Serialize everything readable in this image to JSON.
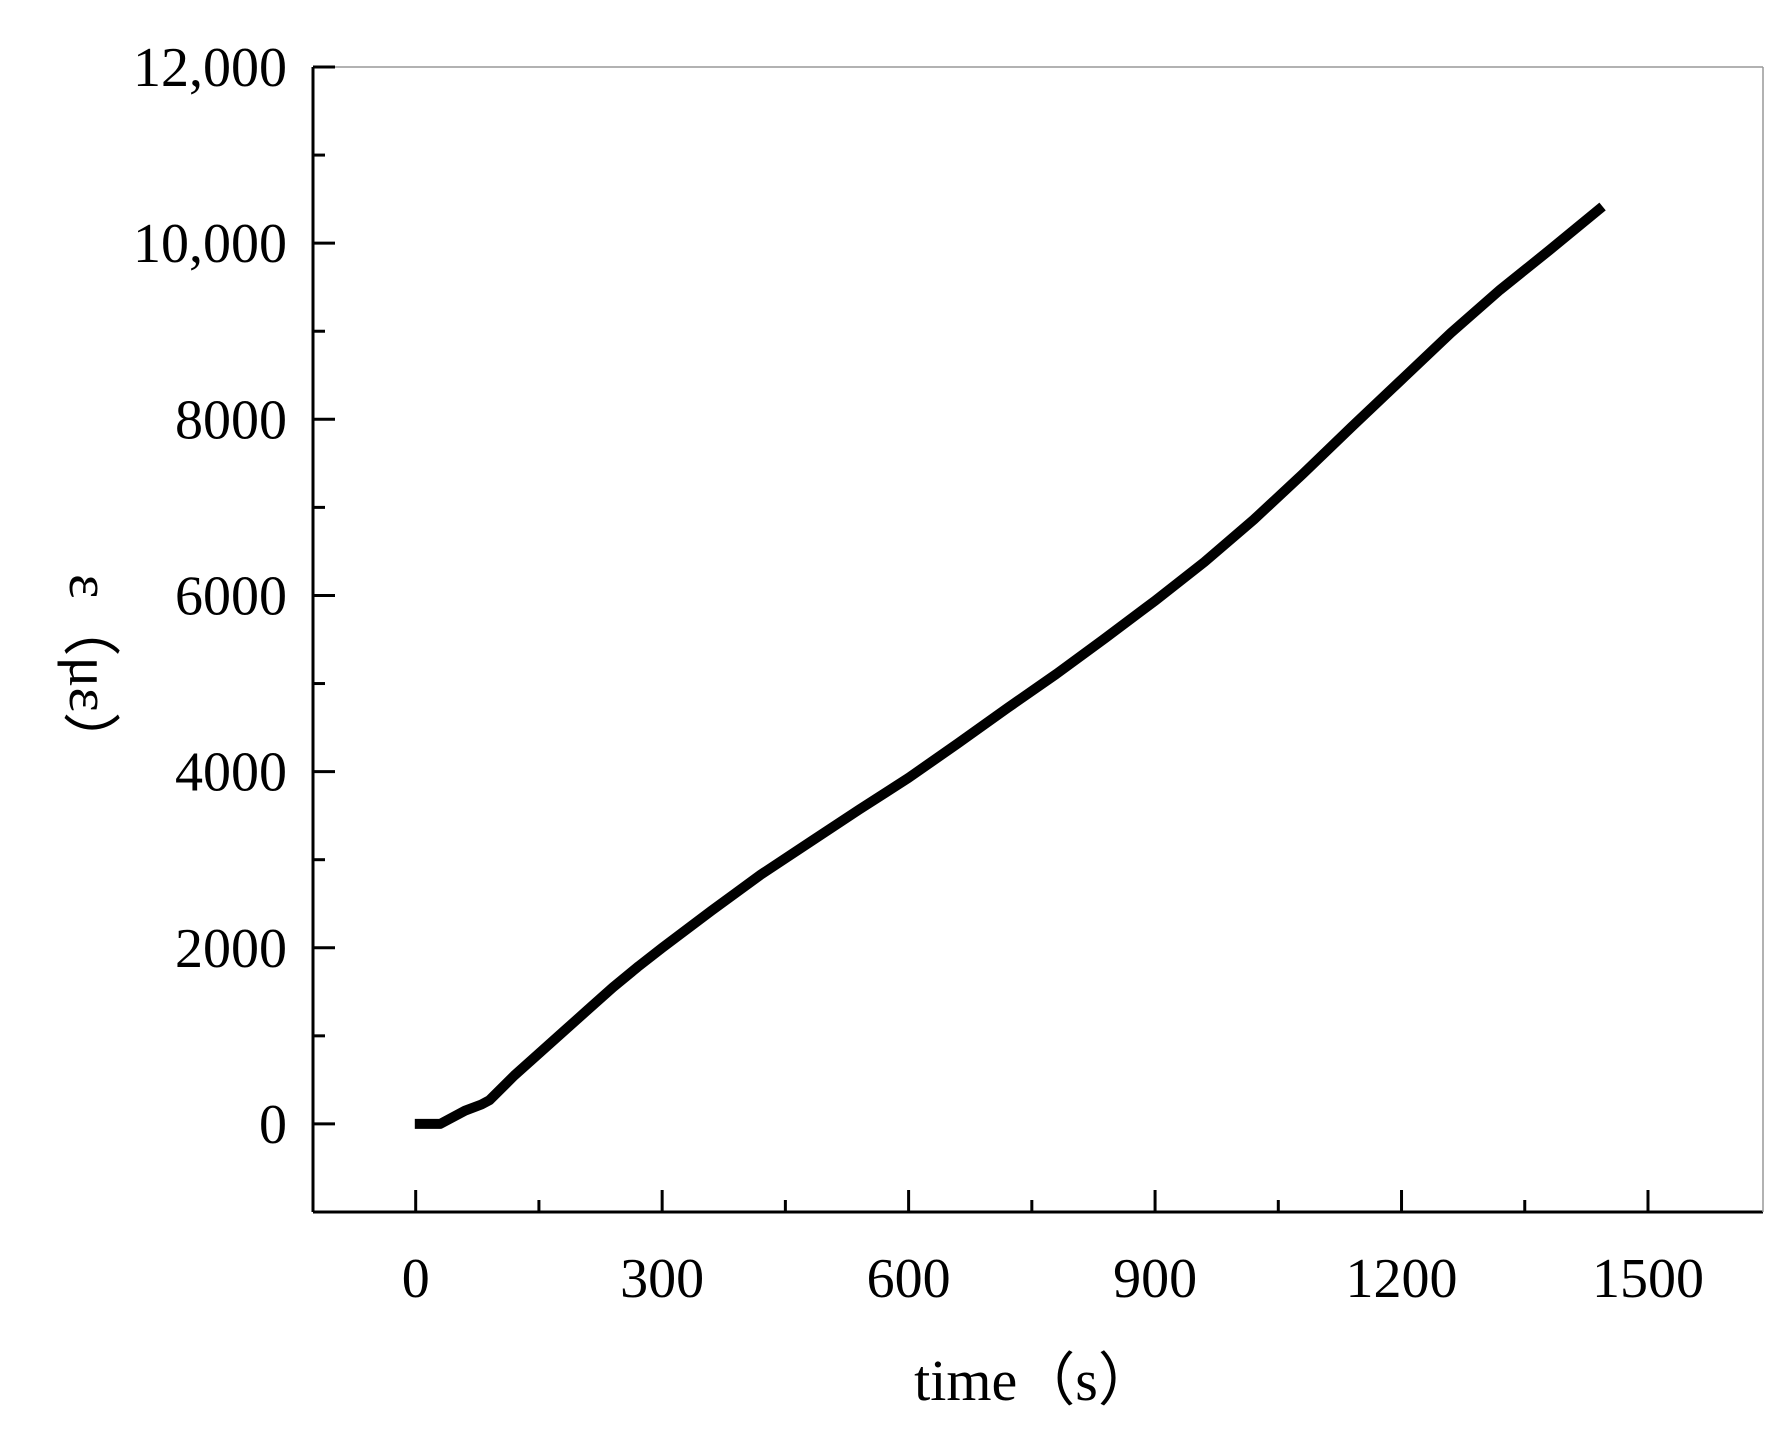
{
  "chart_data": {
    "type": "line",
    "title": "",
    "xlabel": "time（s）",
    "ylabel": "ε（με）",
    "xlim": [
      -125,
      1640
    ],
    "ylim": [
      -1000,
      12000
    ],
    "xticks": [
      0,
      300,
      600,
      900,
      1200,
      1500
    ],
    "xtick_labels": [
      "0",
      "300",
      "600",
      "900",
      "1200",
      "1500"
    ],
    "yticks": [
      0,
      2000,
      4000,
      6000,
      8000,
      10000,
      12000
    ],
    "ytick_labels": [
      "0",
      "2000",
      "4000",
      "6000",
      "8000",
      "10,000",
      "12,000"
    ],
    "grid": false,
    "legend": "none",
    "line_color": "#000000",
    "series": [
      {
        "x": [
          5,
          30,
          60,
          80,
          90,
          120,
          150,
          180,
          210,
          240,
          270,
          300,
          360,
          420,
          480,
          540,
          600,
          660,
          720,
          780,
          840,
          900,
          960,
          1020,
          1080,
          1140,
          1200,
          1260,
          1320,
          1380,
          1440
        ],
        "y": [
          0,
          0,
          150,
          220,
          270,
          550,
          800,
          1050,
          1300,
          1550,
          1780,
          2000,
          2420,
          2830,
          3200,
          3570,
          3930,
          4320,
          4720,
          5110,
          5520,
          5940,
          6380,
          6860,
          7380,
          7920,
          8450,
          8980,
          9470,
          9920,
          10380
        ]
      }
    ]
  }
}
